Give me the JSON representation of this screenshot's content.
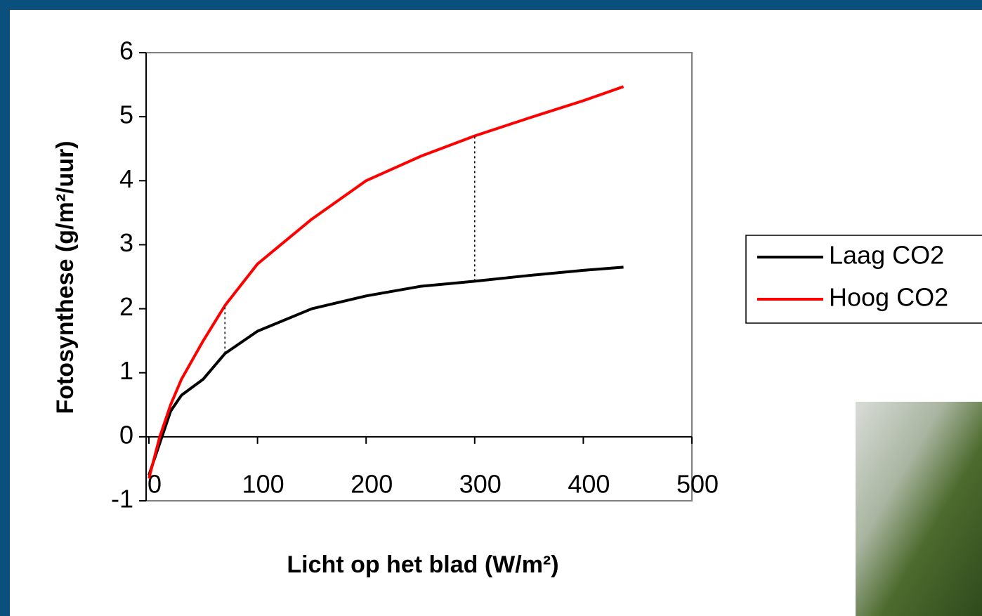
{
  "chart_data": {
    "type": "line",
    "x_label": "Licht op het blad (W/m²)",
    "y_label": "Fotosynthese (g/m²/uur)",
    "x": [
      0,
      10,
      20,
      30,
      50,
      70,
      100,
      150,
      200,
      250,
      300,
      350,
      400,
      437
    ],
    "series": [
      {
        "name": "Laag CO2",
        "color": "#000000",
        "values": [
          -0.6,
          -0.1,
          0.4,
          0.65,
          0.9,
          1.3,
          1.65,
          2.0,
          2.2,
          2.35,
          2.43,
          2.52,
          2.6,
          2.65
        ]
      },
      {
        "name": "Hoog CO2",
        "color": "#ff0000",
        "values": [
          -0.65,
          0,
          0.5,
          0.9,
          1.5,
          2.05,
          2.7,
          3.4,
          4.0,
          4.38,
          4.7,
          4.98,
          5.25,
          5.47
        ]
      }
    ],
    "dotted_lines": [
      {
        "x": 70,
        "y1": 1.3,
        "y2": 2.05
      },
      {
        "x": 300,
        "y1": 2.43,
        "y2": 4.7
      }
    ],
    "xlim": [
      0,
      500
    ],
    "xticks": [
      0,
      100,
      200,
      300,
      400,
      500
    ],
    "ylim": [
      -1,
      6
    ],
    "yticks": [
      -1,
      0,
      1,
      2,
      3,
      4,
      5,
      6
    ],
    "legend": "right"
  }
}
